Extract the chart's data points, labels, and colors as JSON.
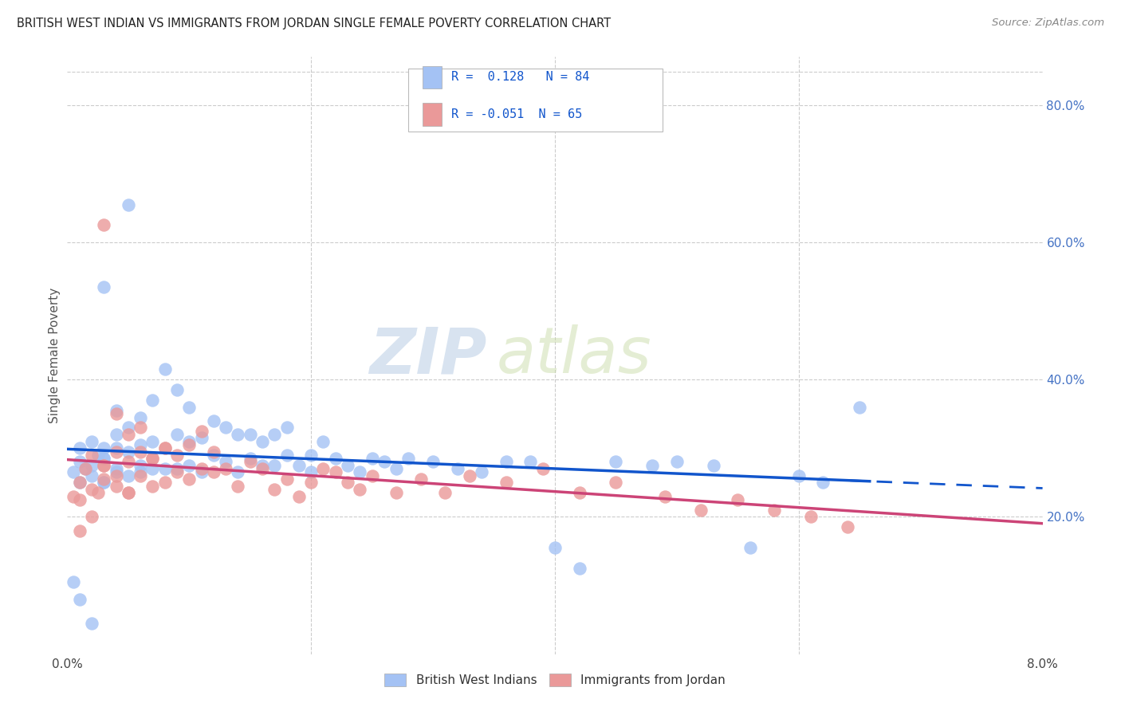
{
  "title": "BRITISH WEST INDIAN VS IMMIGRANTS FROM JORDAN SINGLE FEMALE POVERTY CORRELATION CHART",
  "source": "Source: ZipAtlas.com",
  "ylabel": "Single Female Poverty",
  "right_yticks": [
    "80.0%",
    "60.0%",
    "40.0%",
    "20.0%"
  ],
  "right_ytick_vals": [
    0.8,
    0.6,
    0.4,
    0.2
  ],
  "xlim": [
    0.0,
    0.08
  ],
  "ylim": [
    0.0,
    0.87
  ],
  "blue_R": 0.128,
  "blue_N": 84,
  "pink_R": -0.051,
  "pink_N": 65,
  "blue_color": "#a4c2f4",
  "pink_color": "#ea9999",
  "blue_line_color": "#1155cc",
  "pink_line_color": "#cc4477",
  "watermark_zip": "ZIP",
  "watermark_atlas": "atlas",
  "legend_label_blue": "British West Indians",
  "legend_label_pink": "Immigrants from Jordan",
  "grid_color": "#cccccc",
  "blue_x": [
    0.0005,
    0.001,
    0.001,
    0.0015,
    0.002,
    0.002,
    0.0025,
    0.003,
    0.003,
    0.003,
    0.004,
    0.004,
    0.004,
    0.005,
    0.005,
    0.005,
    0.006,
    0.006,
    0.006,
    0.007,
    0.007,
    0.007,
    0.008,
    0.008,
    0.009,
    0.009,
    0.009,
    0.01,
    0.01,
    0.01,
    0.011,
    0.011,
    0.012,
    0.012,
    0.013,
    0.013,
    0.014,
    0.014,
    0.015,
    0.015,
    0.016,
    0.016,
    0.017,
    0.017,
    0.018,
    0.018,
    0.019,
    0.02,
    0.02,
    0.021,
    0.022,
    0.023,
    0.024,
    0.025,
    0.026,
    0.027,
    0.028,
    0.03,
    0.032,
    0.034,
    0.036,
    0.038,
    0.04,
    0.042,
    0.045,
    0.048,
    0.05,
    0.053,
    0.056,
    0.06,
    0.062,
    0.065,
    0.001,
    0.002,
    0.003,
    0.003,
    0.004,
    0.004,
    0.005,
    0.006,
    0.0005,
    0.001,
    0.002,
    0.003
  ],
  "blue_y": [
    0.265,
    0.28,
    0.3,
    0.27,
    0.26,
    0.31,
    0.29,
    0.25,
    0.285,
    0.3,
    0.27,
    0.32,
    0.355,
    0.26,
    0.295,
    0.33,
    0.275,
    0.305,
    0.345,
    0.27,
    0.31,
    0.37,
    0.27,
    0.415,
    0.27,
    0.32,
    0.385,
    0.275,
    0.31,
    0.36,
    0.265,
    0.315,
    0.29,
    0.34,
    0.28,
    0.33,
    0.265,
    0.32,
    0.285,
    0.32,
    0.275,
    0.31,
    0.275,
    0.32,
    0.29,
    0.33,
    0.275,
    0.29,
    0.265,
    0.31,
    0.285,
    0.275,
    0.265,
    0.285,
    0.28,
    0.27,
    0.285,
    0.28,
    0.27,
    0.265,
    0.28,
    0.28,
    0.155,
    0.125,
    0.28,
    0.275,
    0.28,
    0.275,
    0.155,
    0.26,
    0.25,
    0.36,
    0.25,
    0.275,
    0.25,
    0.285,
    0.265,
    0.3,
    0.655,
    0.265,
    0.105,
    0.08,
    0.045,
    0.535
  ],
  "pink_x": [
    0.0005,
    0.001,
    0.001,
    0.0015,
    0.002,
    0.002,
    0.0025,
    0.003,
    0.003,
    0.004,
    0.004,
    0.005,
    0.005,
    0.006,
    0.006,
    0.007,
    0.007,
    0.008,
    0.008,
    0.009,
    0.009,
    0.01,
    0.01,
    0.011,
    0.011,
    0.012,
    0.012,
    0.013,
    0.014,
    0.015,
    0.016,
    0.017,
    0.018,
    0.019,
    0.02,
    0.021,
    0.022,
    0.023,
    0.024,
    0.025,
    0.027,
    0.029,
    0.031,
    0.033,
    0.036,
    0.039,
    0.042,
    0.045,
    0.049,
    0.052,
    0.055,
    0.058,
    0.061,
    0.064,
    0.001,
    0.002,
    0.003,
    0.004,
    0.005,
    0.006,
    0.007,
    0.008,
    0.003,
    0.004,
    0.005
  ],
  "pink_y": [
    0.23,
    0.25,
    0.225,
    0.27,
    0.24,
    0.29,
    0.235,
    0.275,
    0.255,
    0.245,
    0.295,
    0.235,
    0.28,
    0.26,
    0.295,
    0.245,
    0.285,
    0.25,
    0.3,
    0.265,
    0.29,
    0.255,
    0.305,
    0.27,
    0.325,
    0.265,
    0.295,
    0.27,
    0.245,
    0.28,
    0.27,
    0.24,
    0.255,
    0.23,
    0.25,
    0.27,
    0.265,
    0.25,
    0.24,
    0.26,
    0.235,
    0.255,
    0.235,
    0.26,
    0.25,
    0.27,
    0.235,
    0.25,
    0.23,
    0.21,
    0.225,
    0.21,
    0.2,
    0.185,
    0.18,
    0.2,
    0.625,
    0.35,
    0.32,
    0.33,
    0.285,
    0.3,
    0.275,
    0.26,
    0.235
  ]
}
